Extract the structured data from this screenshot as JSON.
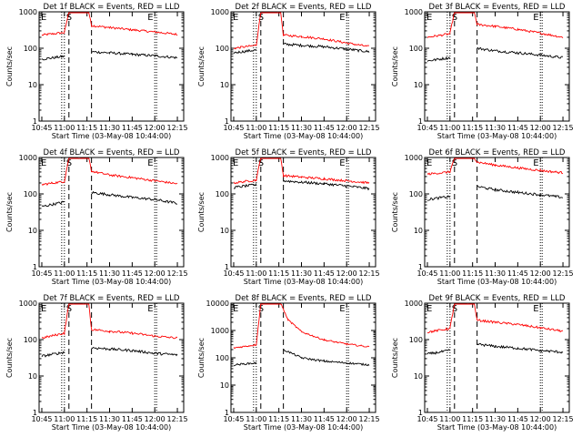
{
  "chart_data": {
    "type": "line",
    "xlabel": "Start Time (03-May-08 10:44:00)",
    "ylabel": "Counts/sec",
    "xticks": [
      "10:45",
      "11:00",
      "11:15",
      "11:30",
      "11:45",
      "12:00",
      "12:15"
    ],
    "yticks": [
      "1",
      "10",
      "100",
      "1000"
    ],
    "panels": [
      {
        "title": "Det 1f BLACK = Events, RED = LLD",
        "ymax_label": "1000",
        "red": [
          [
            10.75,
            230
          ],
          [
            11.0,
            270
          ],
          [
            11.05,
            1000
          ],
          [
            11.27,
            1000
          ],
          [
            11.3,
            420
          ],
          [
            11.5,
            370
          ],
          [
            11.75,
            320
          ],
          [
            12.0,
            280
          ],
          [
            12.25,
            240
          ]
        ],
        "black": [
          [
            10.75,
            50
          ],
          [
            11.0,
            60
          ],
          [
            11.05,
            null
          ],
          [
            11.3,
            80
          ],
          [
            11.5,
            75
          ],
          [
            11.75,
            68
          ],
          [
            12.0,
            62
          ],
          [
            12.25,
            55
          ]
        ]
      },
      {
        "title": "Det 2f BLACK = Events, RED = LLD",
        "ymax_label": "1000",
        "red": [
          [
            10.75,
            100
          ],
          [
            11.0,
            120
          ],
          [
            11.05,
            1000
          ],
          [
            11.27,
            1000
          ],
          [
            11.3,
            230
          ],
          [
            11.5,
            210
          ],
          [
            11.75,
            180
          ],
          [
            12.0,
            140
          ],
          [
            12.25,
            110
          ]
        ],
        "black": [
          [
            10.75,
            75
          ],
          [
            11.0,
            90
          ],
          [
            11.05,
            null
          ],
          [
            11.3,
            130
          ],
          [
            11.5,
            120
          ],
          [
            11.75,
            110
          ],
          [
            12.0,
            95
          ],
          [
            12.25,
            80
          ]
        ]
      },
      {
        "title": "Det 3f BLACK = Events, RED = LLD",
        "ymax_label": "1000",
        "red": [
          [
            10.75,
            200
          ],
          [
            11.0,
            250
          ],
          [
            11.05,
            1000
          ],
          [
            11.27,
            1000
          ],
          [
            11.3,
            450
          ],
          [
            11.5,
            400
          ],
          [
            11.75,
            330
          ],
          [
            12.0,
            260
          ],
          [
            12.25,
            200
          ]
        ],
        "black": [
          [
            10.75,
            45
          ],
          [
            11.0,
            55
          ],
          [
            11.05,
            null
          ],
          [
            11.3,
            100
          ],
          [
            11.5,
            85
          ],
          [
            11.75,
            75
          ],
          [
            12.0,
            65
          ],
          [
            12.25,
            55
          ]
        ]
      },
      {
        "title": "Det 4f BLACK = Events, RED = LLD",
        "ymax_label": "1000",
        "red": [
          [
            10.75,
            180
          ],
          [
            11.0,
            220
          ],
          [
            11.05,
            1000
          ],
          [
            11.27,
            1000
          ],
          [
            11.3,
            420
          ],
          [
            11.5,
            330
          ],
          [
            11.75,
            280
          ],
          [
            12.0,
            230
          ],
          [
            12.25,
            190
          ]
        ],
        "black": [
          [
            10.75,
            45
          ],
          [
            11.0,
            60
          ],
          [
            11.05,
            null
          ],
          [
            11.3,
            110
          ],
          [
            11.5,
            95
          ],
          [
            11.75,
            80
          ],
          [
            12.0,
            70
          ],
          [
            12.25,
            55
          ]
        ]
      },
      {
        "title": "Det 5f BLACK = Events, RED = LLD",
        "ymax_label": "1000",
        "red": [
          [
            10.75,
            200
          ],
          [
            11.0,
            240
          ],
          [
            11.05,
            1000
          ],
          [
            11.27,
            1000
          ],
          [
            11.3,
            320
          ],
          [
            11.5,
            290
          ],
          [
            11.75,
            260
          ],
          [
            12.0,
            230
          ],
          [
            12.25,
            200
          ]
        ],
        "black": [
          [
            10.75,
            150
          ],
          [
            11.0,
            180
          ],
          [
            11.05,
            null
          ],
          [
            11.3,
            230
          ],
          [
            11.5,
            210
          ],
          [
            11.75,
            190
          ],
          [
            12.0,
            165
          ],
          [
            12.25,
            140
          ]
        ]
      },
      {
        "title": "Det 6f BLACK = Events, RED = LLD",
        "ymax_label": "1000",
        "red": [
          [
            10.75,
            350
          ],
          [
            11.0,
            400
          ],
          [
            11.05,
            1000
          ],
          [
            11.27,
            1000
          ],
          [
            11.3,
            750
          ],
          [
            11.5,
            620
          ],
          [
            11.75,
            520
          ],
          [
            12.0,
            440
          ],
          [
            12.25,
            380
          ]
        ],
        "black": [
          [
            10.75,
            70
          ],
          [
            11.0,
            85
          ],
          [
            11.05,
            null
          ],
          [
            11.3,
            160
          ],
          [
            11.5,
            130
          ],
          [
            11.75,
            110
          ],
          [
            12.0,
            95
          ],
          [
            12.25,
            80
          ]
        ]
      },
      {
        "title": "Det 7f BLACK = Events, RED = LLD",
        "ymax_label": "1000",
        "red": [
          [
            10.75,
            110
          ],
          [
            11.0,
            150
          ],
          [
            11.05,
            1000
          ],
          [
            11.27,
            1000
          ],
          [
            11.3,
            190
          ],
          [
            11.5,
            170
          ],
          [
            11.75,
            150
          ],
          [
            12.0,
            125
          ],
          [
            12.25,
            110
          ]
        ],
        "black": [
          [
            10.75,
            35
          ],
          [
            11.0,
            45
          ],
          [
            11.05,
            null
          ],
          [
            11.3,
            60
          ],
          [
            11.5,
            55
          ],
          [
            11.75,
            50
          ],
          [
            12.0,
            42
          ],
          [
            12.25,
            38
          ]
        ]
      },
      {
        "title": "Det 8f BLACK = Events, RED = LLD",
        "ymax_label": "10000",
        "red": [
          [
            10.75,
            230
          ],
          [
            11.0,
            300
          ],
          [
            11.05,
            10000
          ],
          [
            11.27,
            10000
          ],
          [
            11.35,
            2500
          ],
          [
            11.5,
            900
          ],
          [
            11.75,
            450
          ],
          [
            12.0,
            320
          ],
          [
            12.25,
            250
          ]
        ],
        "black": [
          [
            10.75,
            55
          ],
          [
            11.0,
            65
          ],
          [
            11.05,
            null
          ],
          [
            11.3,
            200
          ],
          [
            11.5,
            100
          ],
          [
            11.75,
            75
          ],
          [
            12.0,
            65
          ],
          [
            12.25,
            55
          ]
        ]
      },
      {
        "title": "Det 9f BLACK = Events, RED = LLD",
        "ymax_label": "1000",
        "red": [
          [
            10.75,
            160
          ],
          [
            11.0,
            200
          ],
          [
            11.05,
            1000
          ],
          [
            11.27,
            1000
          ],
          [
            11.3,
            340
          ],
          [
            11.5,
            300
          ],
          [
            11.75,
            260
          ],
          [
            12.0,
            210
          ],
          [
            12.25,
            170
          ]
        ],
        "black": [
          [
            10.75,
            40
          ],
          [
            11.0,
            50
          ],
          [
            11.05,
            null
          ],
          [
            11.3,
            75
          ],
          [
            11.5,
            65
          ],
          [
            11.75,
            58
          ],
          [
            12.0,
            50
          ],
          [
            12.25,
            45
          ]
        ]
      }
    ],
    "markers": [
      "E",
      "S",
      "E"
    ],
    "colors": {
      "events": "#000000",
      "lld": "#ff0000"
    },
    "grid": false,
    "y_scale": "log"
  }
}
